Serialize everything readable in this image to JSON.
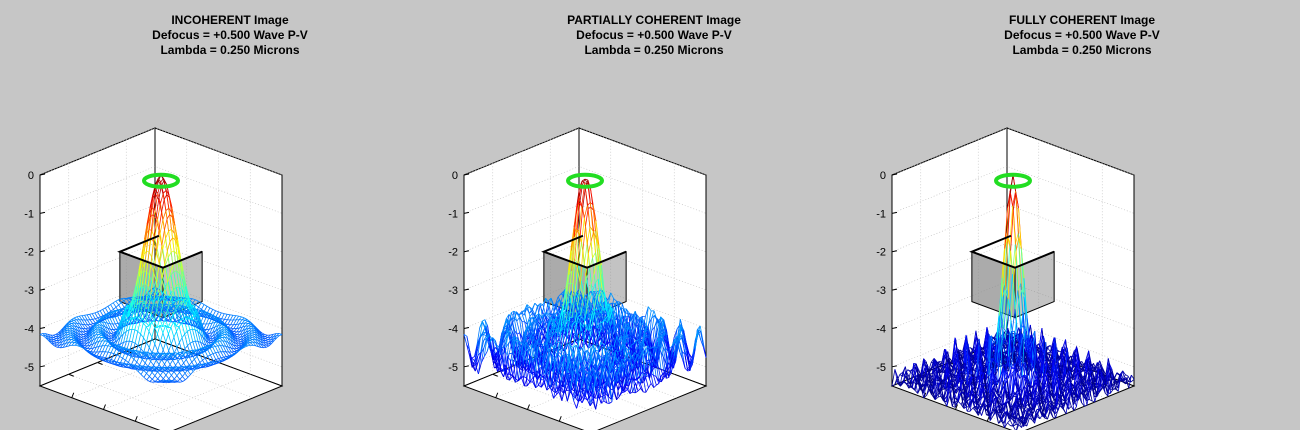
{
  "figure": {
    "background": "#c6c6c6",
    "colormap": "jet"
  },
  "chart_data": [
    {
      "type": "surface",
      "title": "INCOHERENT Image",
      "subtitle_lines": [
        "Defocus = +0.500 Wave P-V",
        "Lambda = 0.250 Microns"
      ],
      "zticks": [
        "0",
        "-1",
        "-2",
        "-3",
        "-4",
        "-5"
      ],
      "zlim": [
        -5.5,
        0
      ],
      "grid": true,
      "peak_ring_color": "#22dd22",
      "box_color": "#888888",
      "style": "smooth",
      "edge_level": -4.0
    },
    {
      "type": "surface",
      "title": "PARTIALLY COHERENT Image",
      "subtitle_lines": [
        "Defocus = +0.500 Wave P-V",
        "Lambda = 0.250 Microns"
      ],
      "zticks": [
        "0",
        "-1",
        "-2",
        "-3",
        "-4",
        "-5"
      ],
      "zlim": [
        -5.5,
        0
      ],
      "grid": true,
      "peak_ring_color": "#22dd22",
      "box_color": "#888888",
      "style": "rippled",
      "edge_level": -4.7
    },
    {
      "type": "surface",
      "title": "FULLY COHERENT Image",
      "subtitle_lines": [
        "Defocus = +0.500 Wave P-V",
        "Lambda = 0.250 Microns"
      ],
      "zticks": [
        "0",
        "-1",
        "-2",
        "-3",
        "-4",
        "-5"
      ],
      "zlim": [
        -5.5,
        0
      ],
      "grid": true,
      "peak_ring_color": "#22dd22",
      "box_color": "#888888",
      "style": "spiky",
      "edge_level": -5.5
    }
  ]
}
